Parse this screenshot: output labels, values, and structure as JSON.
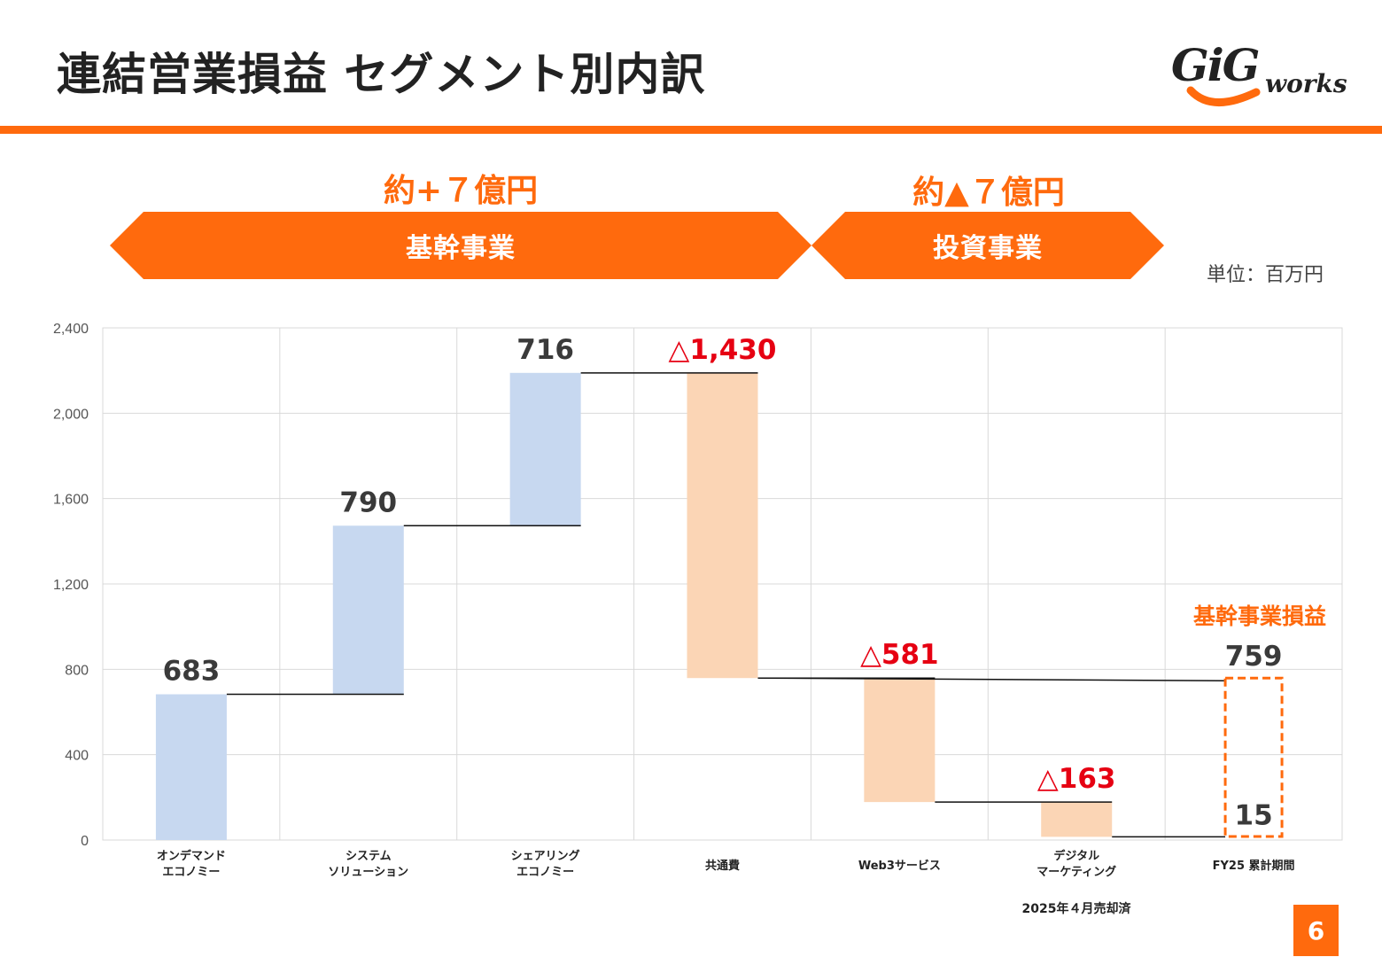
{
  "header": {
    "title": "連結営業損益 セグメント別内訳",
    "logo_text": "GiG",
    "logo_sub": "works"
  },
  "banners": {
    "core": {
      "summary": "約+７億円",
      "label": "基幹事業"
    },
    "investment": {
      "summary": "約▲７億円",
      "label": "投資事業"
    }
  },
  "unit_label": "単位：百万円",
  "notes": {
    "divested": "2025年４月売却済",
    "core_profit_label": "基幹事業損益"
  },
  "page_number": "6",
  "colors": {
    "accent": "#ff6a0d",
    "positive_bar": "#c7d8f0",
    "negative_bar": "#fbd5b5",
    "negative_text": "#e60012",
    "value_text": "#3a3a3a"
  },
  "chart_data": {
    "type": "bar",
    "subtype": "waterfall",
    "ylim": [
      0,
      2400
    ],
    "yticks": [
      0,
      400,
      800,
      1200,
      1600,
      2000,
      2400
    ],
    "ytick_labels": [
      "0",
      "400",
      "800",
      "1,200",
      "1,600",
      "2,000",
      "2,400"
    ],
    "grid": true,
    "categories": [
      [
        "オンデマンド",
        "エコノミー"
      ],
      [
        "システム",
        "ソリューション"
      ],
      [
        "シェアリング",
        "エコノミー"
      ],
      [
        "共通費"
      ],
      [
        "Web3サービス"
      ],
      [
        "デジタル",
        "マーケティング"
      ],
      [
        "FY25 累計期間"
      ]
    ],
    "steps": [
      {
        "start": 0,
        "end": 683,
        "delta": 683,
        "label": "683",
        "kind": "positive"
      },
      {
        "start": 683,
        "end": 1473,
        "delta": 790,
        "label": "790",
        "kind": "positive"
      },
      {
        "start": 1473,
        "end": 2189,
        "delta": 716,
        "label": "716",
        "kind": "positive"
      },
      {
        "start": 2189,
        "end": 759,
        "delta": -1430,
        "label": "△1,430",
        "kind": "negative"
      },
      {
        "start": 759,
        "end": 178,
        "delta": -581,
        "label": "△581",
        "kind": "negative"
      },
      {
        "start": 178,
        "end": 15,
        "delta": -163,
        "label": "△163",
        "kind": "negative"
      },
      {
        "start": 0,
        "end": 15,
        "delta": 15,
        "label": "15",
        "kind": "total"
      }
    ],
    "core_total": {
      "value": 759,
      "label": "759"
    }
  }
}
